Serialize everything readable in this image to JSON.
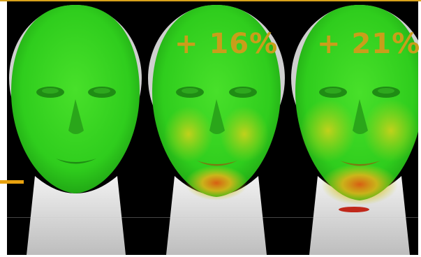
{
  "annotations": {
    "label_middle": "+ 16%",
    "label_right": "+ 21%"
  },
  "colors": {
    "background": "#000000",
    "accent": "#d9a21b",
    "label": "#c99e1a",
    "base_surface": "#2ecc1c",
    "neck_mesh": "#d8d8d8"
  },
  "panels": [
    {
      "name": "face-scan-baseline"
    },
    {
      "name": "face-scan-plus-16"
    },
    {
      "name": "face-scan-plus-21"
    }
  ]
}
